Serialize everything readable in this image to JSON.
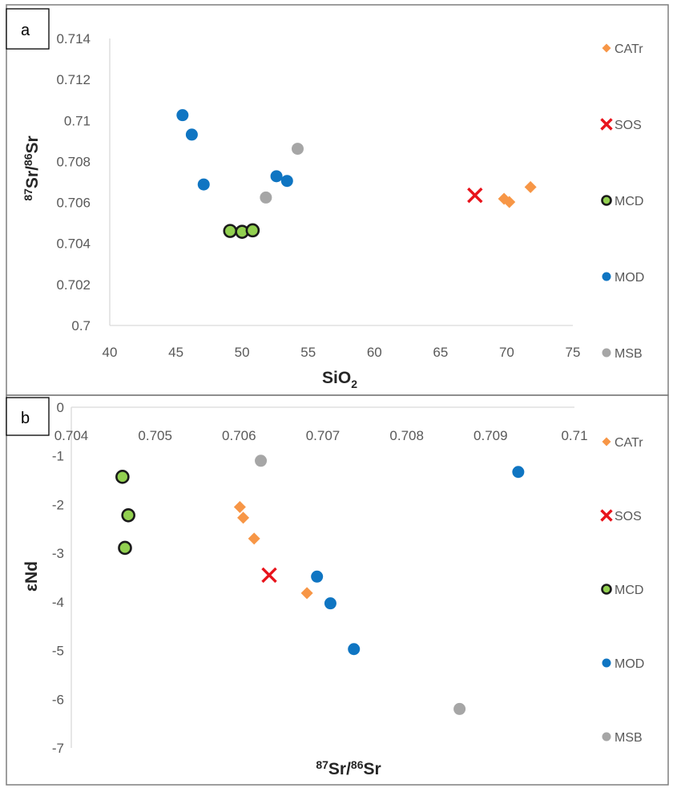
{
  "colors": {
    "CATr": "#f79646",
    "SOS": "#e8141c",
    "MCD": "#92d050",
    "MOD": "#0f75c2",
    "MSB": "#a6a6a6",
    "axis": "#d9d9d9",
    "frame": "#7f7f7f"
  },
  "chart_data": [
    {
      "panel": "a",
      "type": "scatter",
      "title": "",
      "xlabel": "SiO",
      "xlabel_sub": "2",
      "ylabel_sup1": "87",
      "ylabel_mid": "Sr/",
      "ylabel_sup2": "86",
      "ylabel_end": "Sr",
      "xlim": [
        40,
        75
      ],
      "ylim": [
        0.7,
        0.714
      ],
      "xticks": [
        "40",
        "45",
        "50",
        "55",
        "60",
        "65",
        "70",
        "75"
      ],
      "yticks": [
        "0.7",
        "0.702",
        "0.704",
        "0.706",
        "0.708",
        "0.71",
        "0.712",
        "0.714"
      ],
      "series": [
        {
          "name": "CATr",
          "marker": "diamond",
          "points": [
            [
              69.8,
              0.70618
            ],
            [
              70.2,
              0.70602
            ],
            [
              71.8,
              0.70675
            ]
          ]
        },
        {
          "name": "SOS",
          "marker": "x",
          "points": [
            [
              67.6,
              0.70635
            ]
          ]
        },
        {
          "name": "MCD",
          "marker": "circle-outline",
          "points": [
            [
              49.1,
              0.70461
            ],
            [
              50.0,
              0.70457
            ],
            [
              50.8,
              0.70464
            ]
          ]
        },
        {
          "name": "MOD",
          "marker": "circle",
          "points": [
            [
              45.5,
              0.71026
            ],
            [
              46.2,
              0.70931
            ],
            [
              47.1,
              0.70688
            ],
            [
              52.6,
              0.70728
            ],
            [
              53.4,
              0.70705
            ]
          ]
        },
        {
          "name": "MSB",
          "marker": "circle",
          "points": [
            [
              51.8,
              0.70624
            ],
            [
              54.2,
              0.70862
            ]
          ]
        }
      ],
      "legend": [
        "CATr",
        "SOS",
        "MCD",
        "MOD",
        "MSB"
      ]
    },
    {
      "panel": "b",
      "type": "scatter",
      "title": "",
      "xlabel_sup1": "87",
      "xlabel_mid": "Sr/",
      "xlabel_sup2": "86",
      "xlabel_end": "Sr",
      "ylabel": "εNd",
      "xlim": [
        0.704,
        0.71
      ],
      "ylim": [
        -7,
        0
      ],
      "xticks": [
        "0.704",
        "0.705",
        "0.706",
        "0.707",
        "0.708",
        "0.709",
        "0.71"
      ],
      "yticks": [
        "0",
        "-1",
        "-2",
        "-3",
        "-4",
        "-5",
        "-6",
        "-7"
      ],
      "series": [
        {
          "name": "CATr",
          "marker": "diamond",
          "points": [
            [
              0.70601,
              -2.05
            ],
            [
              0.70605,
              -2.27
            ],
            [
              0.70618,
              -2.7
            ],
            [
              0.70681,
              -3.82
            ]
          ]
        },
        {
          "name": "SOS",
          "marker": "x",
          "points": [
            [
              0.70636,
              -3.45
            ]
          ]
        },
        {
          "name": "MCD",
          "marker": "circle-outline",
          "points": [
            [
              0.70461,
              -1.43
            ],
            [
              0.70468,
              -2.22
            ],
            [
              0.70464,
              -2.89
            ]
          ]
        },
        {
          "name": "MOD",
          "marker": "circle",
          "points": [
            [
              0.70933,
              -1.33
            ],
            [
              0.70693,
              -3.48
            ],
            [
              0.70709,
              -4.03
            ],
            [
              0.70737,
              -4.97
            ]
          ]
        },
        {
          "name": "MSB",
          "marker": "circle",
          "points": [
            [
              0.70626,
              -1.1
            ],
            [
              0.70863,
              -6.2
            ]
          ]
        }
      ],
      "legend": [
        "CATr",
        "SOS",
        "MCD",
        "MOD",
        "MSB"
      ]
    }
  ]
}
